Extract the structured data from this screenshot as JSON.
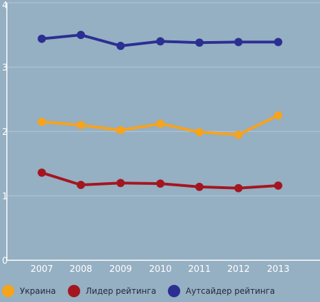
{
  "chart_data": {
    "type": "line",
    "title": "",
    "xlabel": "",
    "ylabel": "",
    "x": [
      "2007",
      "2008",
      "2009",
      "2010",
      "2011",
      "2012",
      "2013"
    ],
    "yticks": [
      "0",
      "1",
      "2",
      "3",
      "4"
    ],
    "ylim": [
      0,
      4
    ],
    "grid": true,
    "legend_position": "bottom",
    "series": [
      {
        "name": "Украина",
        "color": "#f6a31d",
        "values": [
          2.15,
          2.1,
          2.02,
          2.12,
          1.99,
          1.95,
          2.25
        ]
      },
      {
        "name": "Лидер рейтинга",
        "color": "#a4161f",
        "values": [
          1.36,
          1.17,
          1.2,
          1.19,
          1.14,
          1.12,
          1.16
        ]
      },
      {
        "name": "Аутсайдер рейтинга",
        "color": "#2b2f92",
        "values": [
          3.44,
          3.5,
          3.33,
          3.4,
          3.38,
          3.39,
          3.39
        ]
      }
    ]
  }
}
